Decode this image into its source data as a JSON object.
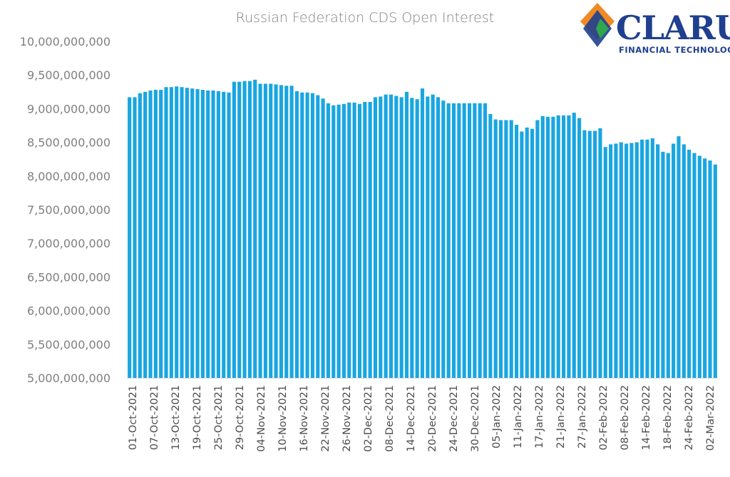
{
  "logo": {
    "name": "CLARUS",
    "tagline": "FINANCIAL TECHNOLOGY",
    "colors": {
      "orange": "#f08a24",
      "green": "#2fa74a",
      "blue": "#1f3f8f"
    }
  },
  "chart_data": {
    "type": "bar",
    "title": "Russian Federation CDS Open Interest",
    "xlabel": "",
    "ylabel": "",
    "ylim": [
      5000000000,
      10000000000
    ],
    "y_ticks": [
      "5,000,000,000",
      "5,500,000,000",
      "6,000,000,000",
      "6,500,000,000",
      "7,000,000,000",
      "7,500,000,000",
      "8,000,000,000",
      "8,500,000,000",
      "9,000,000,000",
      "9,500,000,000",
      "10,000,000,000"
    ],
    "x_tick_labels": [
      "01-Oct-2021",
      "07-Oct-2021",
      "13-Oct-2021",
      "19-Oct-2021",
      "25-Oct-2021",
      "29-Oct-2021",
      "04-Nov-2021",
      "10-Nov-2021",
      "16-Nov-2021",
      "22-Nov-2021",
      "26-Nov-2021",
      "02-Dec-2021",
      "08-Dec-2021",
      "14-Dec-2021",
      "20-Dec-2021",
      "24-Dec-2021",
      "30-Dec-2021",
      "05-Jan-2022",
      "11-Jan-2022",
      "17-Jan-2022",
      "21-Jan-2022",
      "27-Jan-2022",
      "02-Feb-2022",
      "08-Feb-2022",
      "14-Feb-2022",
      "18-Feb-2022",
      "24-Feb-2022",
      "02-Mar-2022"
    ],
    "bar_color": "#19a6e1",
    "grid": false,
    "legend": "none",
    "values": [
      9170000000,
      9170000000,
      9230000000,
      9250000000,
      9270000000,
      9280000000,
      9280000000,
      9320000000,
      9320000000,
      9330000000,
      9320000000,
      9310000000,
      9300000000,
      9290000000,
      9280000000,
      9270000000,
      9270000000,
      9260000000,
      9250000000,
      9240000000,
      9400000000,
      9400000000,
      9410000000,
      9410000000,
      9430000000,
      9370000000,
      9370000000,
      9370000000,
      9360000000,
      9350000000,
      9340000000,
      9340000000,
      9260000000,
      9240000000,
      9240000000,
      9230000000,
      9200000000,
      9150000000,
      9080000000,
      9050000000,
      9060000000,
      9070000000,
      9090000000,
      9090000000,
      9070000000,
      9100000000,
      9100000000,
      9170000000,
      9180000000,
      9210000000,
      9210000000,
      9190000000,
      9170000000,
      9250000000,
      9160000000,
      9140000000,
      9300000000,
      9180000000,
      9210000000,
      9170000000,
      9120000000,
      9080000000,
      9080000000,
      9080000000,
      9080000000,
      9080000000,
      9080000000,
      9080000000,
      9080000000,
      8920000000,
      8840000000,
      8830000000,
      8830000000,
      8830000000,
      8760000000,
      8660000000,
      8720000000,
      8700000000,
      8830000000,
      8890000000,
      8880000000,
      8880000000,
      8900000000,
      8900000000,
      8900000000,
      8940000000,
      8860000000,
      8680000000,
      8670000000,
      8670000000,
      8710000000,
      8430000000,
      8470000000,
      8480000000,
      8500000000,
      8480000000,
      8490000000,
      8500000000,
      8540000000,
      8540000000,
      8560000000,
      8470000000,
      8360000000,
      8340000000,
      8480000000,
      8590000000,
      8470000000,
      8390000000,
      8340000000,
      8300000000,
      8260000000,
      8230000000,
      8170000000
    ]
  }
}
